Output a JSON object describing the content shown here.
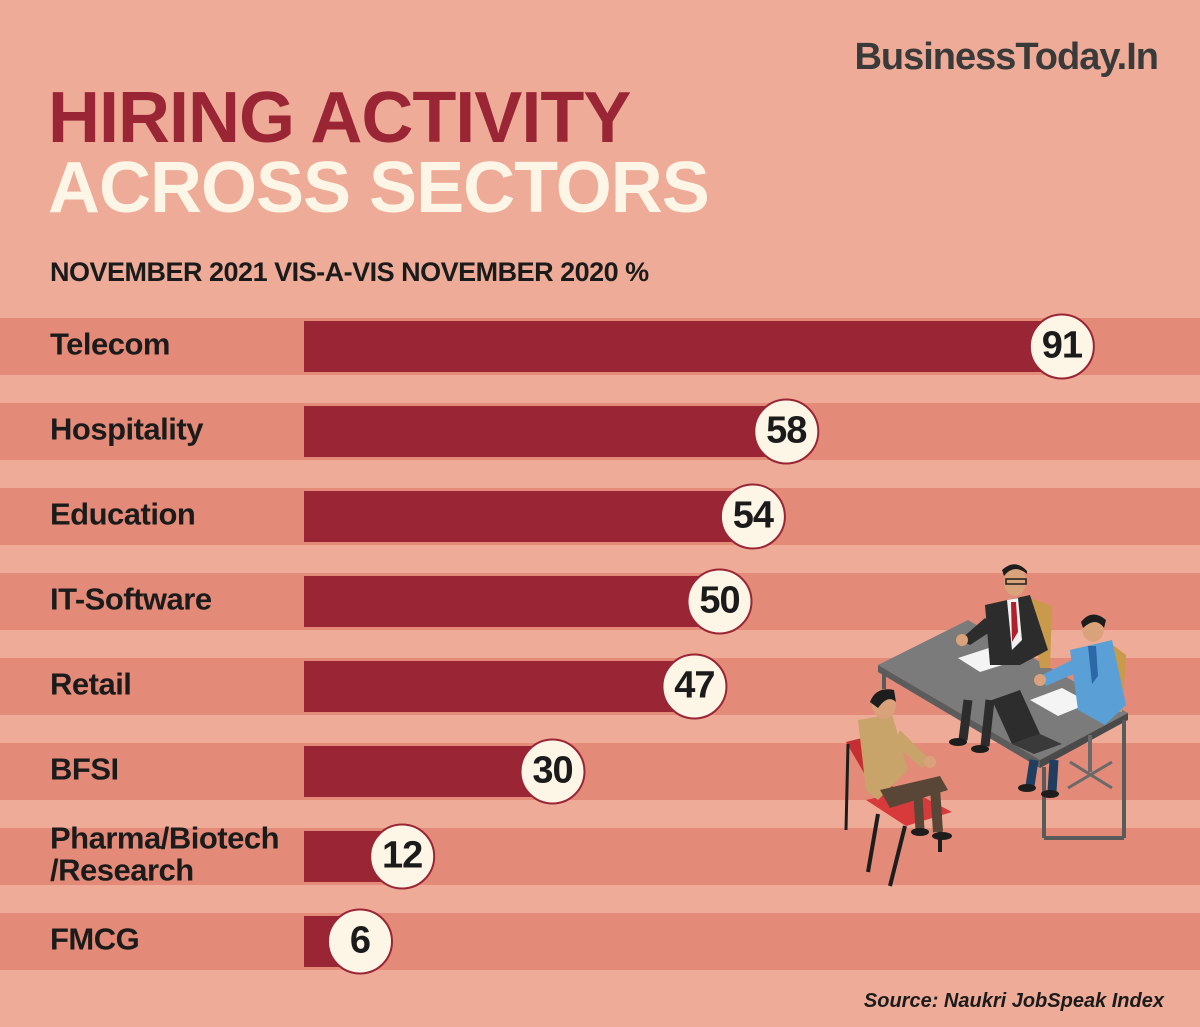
{
  "header": {
    "brand": "BusinessToday.In",
    "title_line1": "HIRING ACTIVITY",
    "title_line2": "ACROSS SECTORS",
    "subtitle": "NOVEMBER 2021 VIS-A-VIS NOVEMBER 2020 %"
  },
  "footer": {
    "source": "Source: Naukri JobSpeak Index"
  },
  "colors": {
    "background": "#eeac98",
    "stripe": "#e38a78",
    "bar": "#9a2535",
    "label_circle": "#fdf6e6",
    "title_accent": "#9a2535",
    "title_light": "#fdf6e6"
  },
  "chart_data": {
    "type": "bar",
    "orientation": "horizontal",
    "title": "HIRING ACTIVITY ACROSS SECTORS",
    "subtitle": "NOVEMBER 2021 VIS-A-VIS NOVEMBER 2020 %",
    "categories": [
      [
        "Telecom"
      ],
      [
        "Hospitality"
      ],
      [
        "Education"
      ],
      [
        "IT-Software"
      ],
      [
        "Retail"
      ],
      [
        "BFSI"
      ],
      [
        "Pharma/Biotech",
        "/Research"
      ],
      [
        "FMCG"
      ]
    ],
    "values": [
      91,
      58,
      54,
      50,
      47,
      30,
      12,
      6
    ],
    "data_labels": [
      "91",
      "58",
      "54",
      "50",
      "47",
      "30",
      "12",
      "6"
    ],
    "xlim": [
      0,
      100
    ],
    "grid": false,
    "legend": "none"
  }
}
